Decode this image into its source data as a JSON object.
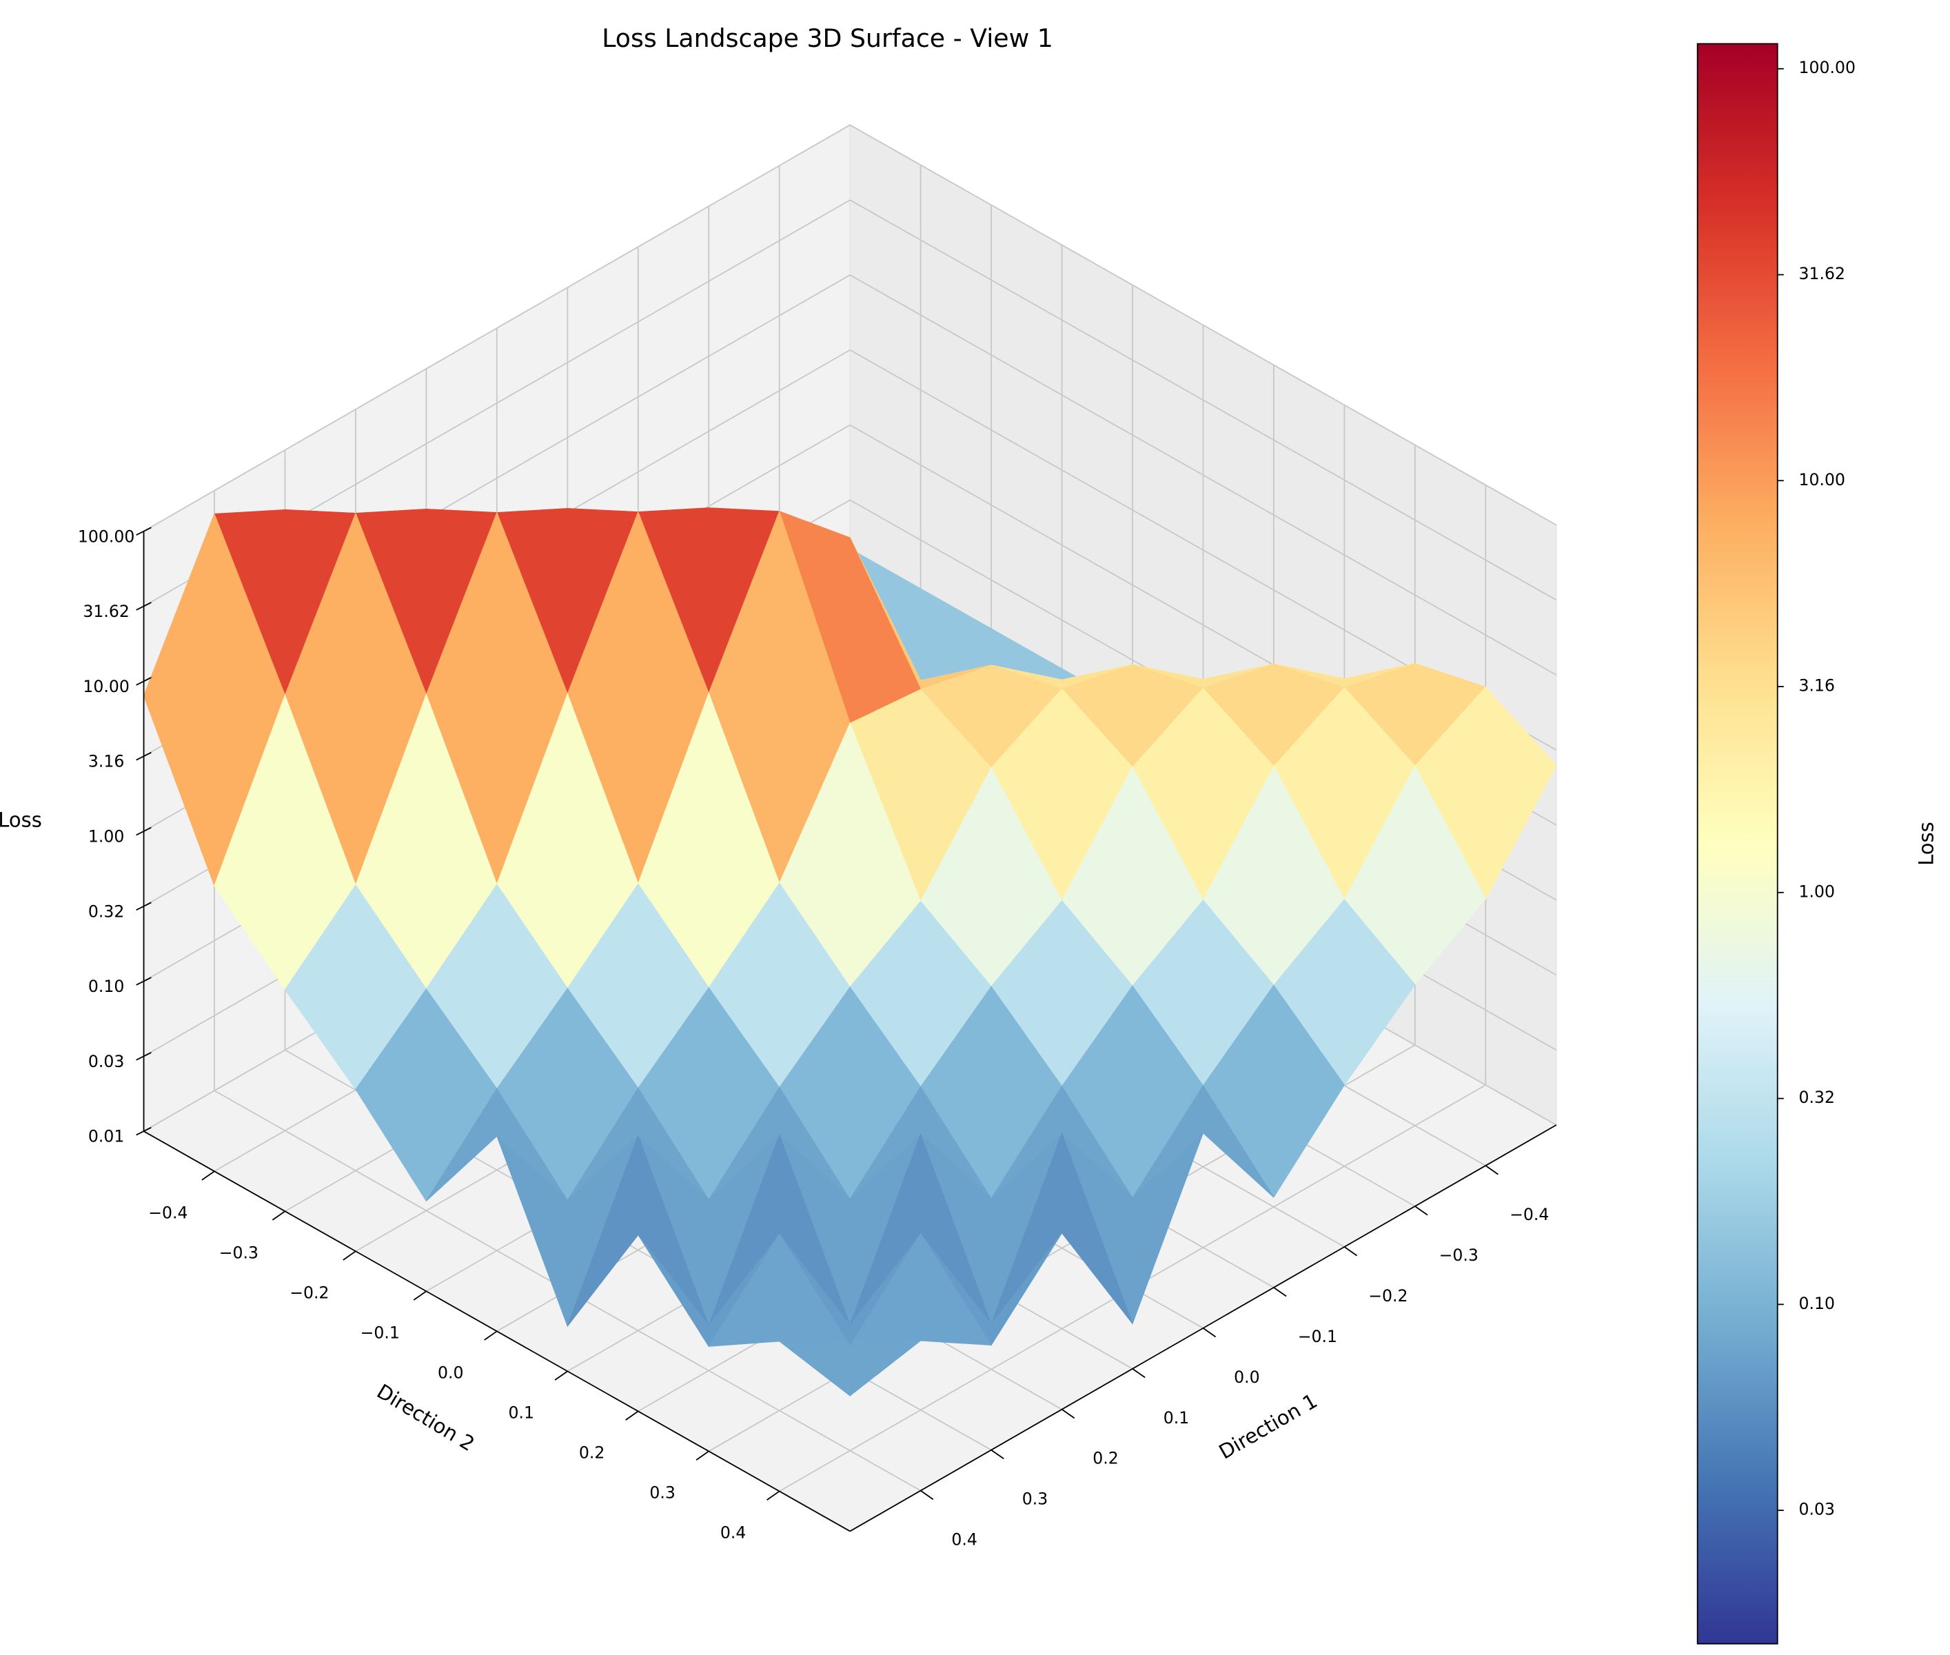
{
  "chart_data": {
    "type": "surface",
    "title": "Loss Landscape 3D Surface - View 1",
    "xlabel": "Direction 1",
    "ylabel": "Direction 2",
    "zlabel": "Loss",
    "colorbar_label": "Loss",
    "zscale": "log",
    "grid": true,
    "x": [
      -0.5,
      -0.4,
      -0.3,
      -0.2,
      -0.1,
      0,
      0.1,
      0.2,
      0.3,
      0.4,
      0.5
    ],
    "y": [
      -0.5,
      -0.4,
      -0.3,
      -0.2,
      -0.1,
      0,
      0.1,
      0.2,
      0.3,
      0.4,
      0.5
    ],
    "z": [
      [
        0.15,
        0.15,
        0.15,
        0.15,
        0.15,
        0.15,
        0.25,
        1.5,
        40,
        70,
        8
      ],
      [
        0.15,
        0.15,
        0.15,
        0.15,
        0.15,
        0.25,
        1.5,
        40,
        70,
        8,
        0.8
      ],
      [
        0.15,
        0.15,
        0.15,
        0.15,
        0.25,
        1.5,
        40,
        70,
        8,
        0.8,
        0.3
      ],
      [
        0.15,
        0.15,
        0.15,
        0.25,
        1.5,
        40,
        70,
        8,
        0.8,
        0.3,
        0.12
      ],
      [
        0.15,
        0.15,
        0.25,
        1.5,
        25,
        70,
        8,
        0.8,
        0.3,
        0.12,
        0.04
      ],
      [
        0.15,
        0.25,
        1.5,
        3.5,
        4.5,
        5,
        0.8,
        0.3,
        0.12,
        0.04,
        0.2
      ],
      [
        0.25,
        1.5,
        3.5,
        4.5,
        2.5,
        0.6,
        0.3,
        0.12,
        0.04,
        0.2,
        0.02
      ],
      [
        1.5,
        3.5,
        4.5,
        2.5,
        0.6,
        0.3,
        0.12,
        0.04,
        0.2,
        0.02,
        0.15
      ],
      [
        3.5,
        4.5,
        2.5,
        0.6,
        0.3,
        0.12,
        0.04,
        0.2,
        0.02,
        0.15,
        0.05
      ],
      [
        4.5,
        2.5,
        0.6,
        0.3,
        0.12,
        0.04,
        0.2,
        0.02,
        0.15,
        0.05,
        0.1
      ],
      [
        2.5,
        0.6,
        0.3,
        0.12,
        0.04,
        0.2,
        0.02,
        0.15,
        0.05,
        0.1,
        0.08
      ]
    ],
    "xlim": [
      -0.5,
      0.5
    ],
    "ylim": [
      -0.5,
      0.5
    ],
    "zlim": [
      0.01,
      100
    ],
    "xticks": [
      {
        "value": -0.4,
        "label": "−0.4"
      },
      {
        "value": -0.3,
        "label": "−0.3"
      },
      {
        "value": -0.2,
        "label": "−0.2"
      },
      {
        "value": -0.1,
        "label": "−0.1"
      },
      {
        "value": 0,
        "label": "0.0"
      },
      0.1,
      0.2,
      0.3,
      0.4
    ],
    "yticks": [
      {
        "value": -0.4,
        "label": "−0.4"
      },
      {
        "value": -0.3,
        "label": "−0.3"
      },
      {
        "value": -0.2,
        "label": "−0.2"
      },
      {
        "value": -0.1,
        "label": "−0.1"
      },
      {
        "value": 0,
        "label": "0.0"
      },
      0.1,
      0.2,
      0.3,
      0.4
    ],
    "zticks": [
      0.01,
      {
        "value": 0.03162,
        "label": "0.03"
      },
      {
        "value": 0.1,
        "label": "0.10"
      },
      {
        "value": 0.3162,
        "label": "0.32"
      },
      {
        "value": 1,
        "label": "1.00"
      },
      {
        "value": 3.162,
        "label": "3.16"
      },
      {
        "value": 10,
        "label": "10.00"
      },
      31.62,
      {
        "value": 100,
        "label": "100.00"
      }
    ],
    "clim": [
      0.015,
      115
    ],
    "cticks": [
      {
        "value": 0.03162,
        "label": "0.03"
      },
      {
        "value": 0.1,
        "label": "0.10"
      },
      {
        "value": 0.3162,
        "label": "0.32"
      },
      {
        "value": 1,
        "label": "1.00"
      },
      {
        "value": 3.162,
        "label": "3.16"
      },
      {
        "value": 10,
        "label": "10.00"
      },
      31.62,
      {
        "value": 100,
        "label": "100.00"
      }
    ],
    "colormap": [
      "#313695",
      "#4575b4",
      "#74add1",
      "#abd9e9",
      "#e0f3f8",
      "#ffffbf",
      "#fee090",
      "#fdae61",
      "#f46d43",
      "#d73027",
      "#a50026"
    ]
  }
}
